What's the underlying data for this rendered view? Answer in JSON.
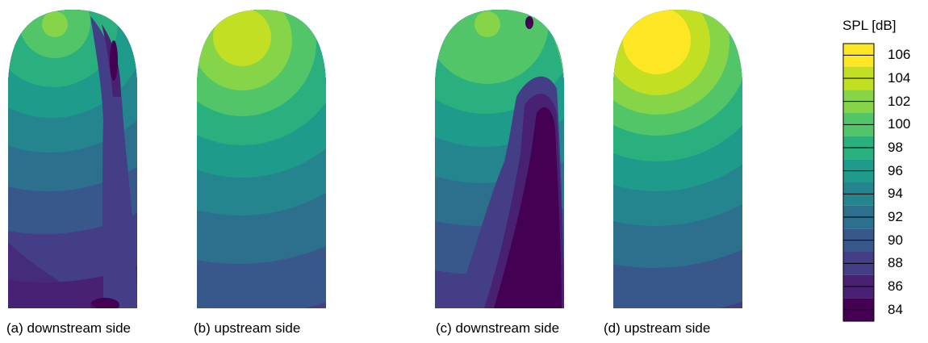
{
  "chart_data": {
    "type": "heatmap",
    "colorbar": {
      "title": "SPL [dB]",
      "ticks": [
        106,
        104,
        102,
        100,
        98,
        96,
        94,
        92,
        90,
        88,
        86,
        84
      ],
      "colors": [
        "#fde725",
        "#c2df23",
        "#86d549",
        "#52c569",
        "#2ab07f",
        "#1e9b8a",
        "#25858e",
        "#2d708e",
        "#38588c",
        "#433e85",
        "#482173",
        "#440154"
      ],
      "range": [
        83,
        107
      ]
    },
    "panels": [
      {
        "caption": "(a) downstream side",
        "hotspot_level_db": 101,
        "min_level_db": 85
      },
      {
        "caption": "(b) upstream side",
        "hotspot_level_db": 104,
        "min_level_db": 89
      },
      {
        "caption": "(c) downstream side",
        "hotspot_level_db": 101,
        "min_level_db": 84
      },
      {
        "caption": "(d) upstream side",
        "hotspot_level_db": 106,
        "min_level_db": 89
      }
    ]
  }
}
